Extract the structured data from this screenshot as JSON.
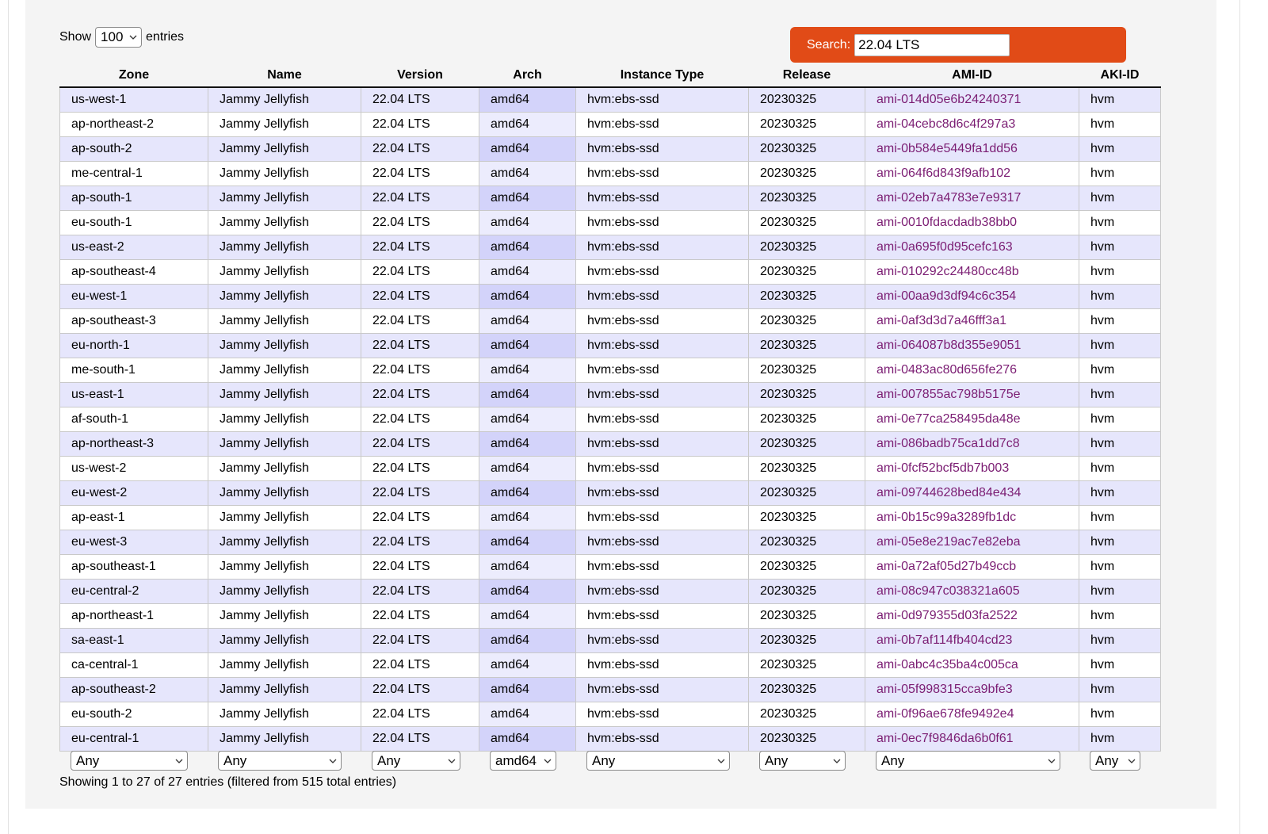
{
  "length_menu": {
    "prefix": "Show",
    "value": "100",
    "suffix": "entries"
  },
  "search": {
    "label": "Search:",
    "value": "22.04 LTS"
  },
  "columns": [
    "Zone",
    "Name",
    "Version",
    "Arch",
    "Instance Type",
    "Release",
    "AMI-ID",
    "AKI-ID"
  ],
  "rows": [
    [
      "us-west-1",
      "Jammy Jellyfish",
      "22.04 LTS",
      "amd64",
      "hvm:ebs-ssd",
      "20230325",
      "ami-014d05e6b24240371",
      "hvm"
    ],
    [
      "ap-northeast-2",
      "Jammy Jellyfish",
      "22.04 LTS",
      "amd64",
      "hvm:ebs-ssd",
      "20230325",
      "ami-04cebc8d6c4f297a3",
      "hvm"
    ],
    [
      "ap-south-2",
      "Jammy Jellyfish",
      "22.04 LTS",
      "amd64",
      "hvm:ebs-ssd",
      "20230325",
      "ami-0b584e5449fa1dd56",
      "hvm"
    ],
    [
      "me-central-1",
      "Jammy Jellyfish",
      "22.04 LTS",
      "amd64",
      "hvm:ebs-ssd",
      "20230325",
      "ami-064f6d843f9afb102",
      "hvm"
    ],
    [
      "ap-south-1",
      "Jammy Jellyfish",
      "22.04 LTS",
      "amd64",
      "hvm:ebs-ssd",
      "20230325",
      "ami-02eb7a4783e7e9317",
      "hvm"
    ],
    [
      "eu-south-1",
      "Jammy Jellyfish",
      "22.04 LTS",
      "amd64",
      "hvm:ebs-ssd",
      "20230325",
      "ami-0010fdacdadb38bb0",
      "hvm"
    ],
    [
      "us-east-2",
      "Jammy Jellyfish",
      "22.04 LTS",
      "amd64",
      "hvm:ebs-ssd",
      "20230325",
      "ami-0a695f0d95cefc163",
      "hvm"
    ],
    [
      "ap-southeast-4",
      "Jammy Jellyfish",
      "22.04 LTS",
      "amd64",
      "hvm:ebs-ssd",
      "20230325",
      "ami-010292c24480cc48b",
      "hvm"
    ],
    [
      "eu-west-1",
      "Jammy Jellyfish",
      "22.04 LTS",
      "amd64",
      "hvm:ebs-ssd",
      "20230325",
      "ami-00aa9d3df94c6c354",
      "hvm"
    ],
    [
      "ap-southeast-3",
      "Jammy Jellyfish",
      "22.04 LTS",
      "amd64",
      "hvm:ebs-ssd",
      "20230325",
      "ami-0af3d3d7a46fff3a1",
      "hvm"
    ],
    [
      "eu-north-1",
      "Jammy Jellyfish",
      "22.04 LTS",
      "amd64",
      "hvm:ebs-ssd",
      "20230325",
      "ami-064087b8d355e9051",
      "hvm"
    ],
    [
      "me-south-1",
      "Jammy Jellyfish",
      "22.04 LTS",
      "amd64",
      "hvm:ebs-ssd",
      "20230325",
      "ami-0483ac80d656fe276",
      "hvm"
    ],
    [
      "us-east-1",
      "Jammy Jellyfish",
      "22.04 LTS",
      "amd64",
      "hvm:ebs-ssd",
      "20230325",
      "ami-007855ac798b5175e",
      "hvm"
    ],
    [
      "af-south-1",
      "Jammy Jellyfish",
      "22.04 LTS",
      "amd64",
      "hvm:ebs-ssd",
      "20230325",
      "ami-0e77ca258495da48e",
      "hvm"
    ],
    [
      "ap-northeast-3",
      "Jammy Jellyfish",
      "22.04 LTS",
      "amd64",
      "hvm:ebs-ssd",
      "20230325",
      "ami-086badb75ca1dd7c8",
      "hvm"
    ],
    [
      "us-west-2",
      "Jammy Jellyfish",
      "22.04 LTS",
      "amd64",
      "hvm:ebs-ssd",
      "20230325",
      "ami-0fcf52bcf5db7b003",
      "hvm"
    ],
    [
      "eu-west-2",
      "Jammy Jellyfish",
      "22.04 LTS",
      "amd64",
      "hvm:ebs-ssd",
      "20230325",
      "ami-09744628bed84e434",
      "hvm"
    ],
    [
      "ap-east-1",
      "Jammy Jellyfish",
      "22.04 LTS",
      "amd64",
      "hvm:ebs-ssd",
      "20230325",
      "ami-0b15c99a3289fb1dc",
      "hvm"
    ],
    [
      "eu-west-3",
      "Jammy Jellyfish",
      "22.04 LTS",
      "amd64",
      "hvm:ebs-ssd",
      "20230325",
      "ami-05e8e219ac7e82eba",
      "hvm"
    ],
    [
      "ap-southeast-1",
      "Jammy Jellyfish",
      "22.04 LTS",
      "amd64",
      "hvm:ebs-ssd",
      "20230325",
      "ami-0a72af05d27b49ccb",
      "hvm"
    ],
    [
      "eu-central-2",
      "Jammy Jellyfish",
      "22.04 LTS",
      "amd64",
      "hvm:ebs-ssd",
      "20230325",
      "ami-08c947c038321a605",
      "hvm"
    ],
    [
      "ap-northeast-1",
      "Jammy Jellyfish",
      "22.04 LTS",
      "amd64",
      "hvm:ebs-ssd",
      "20230325",
      "ami-0d979355d03fa2522",
      "hvm"
    ],
    [
      "sa-east-1",
      "Jammy Jellyfish",
      "22.04 LTS",
      "amd64",
      "hvm:ebs-ssd",
      "20230325",
      "ami-0b7af114fb404cd23",
      "hvm"
    ],
    [
      "ca-central-1",
      "Jammy Jellyfish",
      "22.04 LTS",
      "amd64",
      "hvm:ebs-ssd",
      "20230325",
      "ami-0abc4c35ba4c005ca",
      "hvm"
    ],
    [
      "ap-southeast-2",
      "Jammy Jellyfish",
      "22.04 LTS",
      "amd64",
      "hvm:ebs-ssd",
      "20230325",
      "ami-05f998315cca9bfe3",
      "hvm"
    ],
    [
      "eu-south-2",
      "Jammy Jellyfish",
      "22.04 LTS",
      "amd64",
      "hvm:ebs-ssd",
      "20230325",
      "ami-0f96ae678fe9492e4",
      "hvm"
    ],
    [
      "eu-central-1",
      "Jammy Jellyfish",
      "22.04 LTS",
      "amd64",
      "hvm:ebs-ssd",
      "20230325",
      "ami-0ec7f9846da6b0f61",
      "hvm"
    ]
  ],
  "filters": [
    "Any",
    "Any",
    "Any",
    "amd64",
    "Any",
    "Any",
    "Any",
    "Any"
  ],
  "info": "Showing 1 to 27 of 27 entries (filtered from 515 total entries)",
  "colors": {
    "search_bg": "#e14b17",
    "row_odd": "#e6e6fc",
    "sorted_odd": "#d3d3fa",
    "sorted_even": "#ececfd",
    "ami_link": "#7b1d73"
  },
  "icons": {
    "dropdown": "chevron-down-icon"
  }
}
